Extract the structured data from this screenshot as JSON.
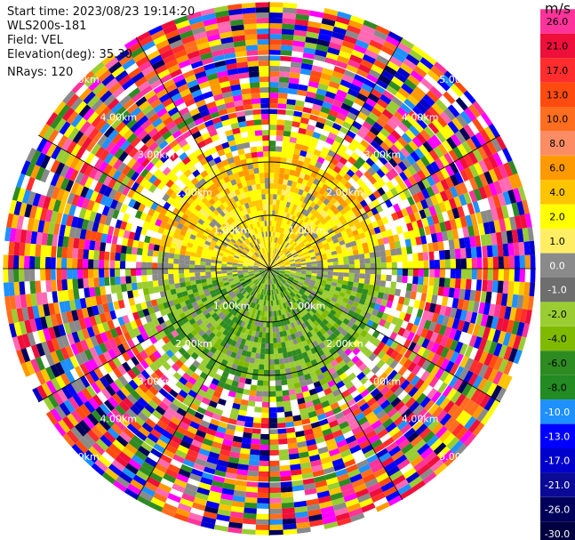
{
  "info": {
    "start_time": "Start time: 2023/08/23 19:14:20",
    "station": "WLS200s-181",
    "field": "Field: VEL",
    "elevation": "Elevation(deg): 35.30",
    "nrays": "NRays: 120"
  },
  "range_labels": [
    "1.00km",
    "2.00km",
    "3.00km",
    "4.00km",
    "5.00km"
  ],
  "colorbar": {
    "unit": "m/s",
    "ticks": [
      "26.0",
      "21.0",
      "17.0",
      "13.0",
      "10.0",
      "8.0",
      "6.0",
      "4.0",
      "2.0",
      "1.0",
      "0.0",
      "-1.0",
      "-2.0",
      "-4.0",
      "-6.0",
      "-8.0",
      "-10.0",
      "-13.0",
      "-17.0",
      "-21.0",
      "-26.0",
      "-30.0"
    ],
    "colors": [
      "#ff3399",
      "#ee0f3a",
      "#ff2d2d",
      "#ff4b0f",
      "#ff6e1e",
      "#fb8c64",
      "#ff9900",
      "#ffc400",
      "#ffff00",
      "#ffee64",
      "#8a8a8a",
      "#6e6e6e",
      "#9acd32",
      "#7fba00",
      "#2e8b22",
      "#228b22",
      "#1e90ff",
      "#0000ff",
      "#0000cd",
      "#0a0a96",
      "#00005a",
      "#000040"
    ]
  }
}
